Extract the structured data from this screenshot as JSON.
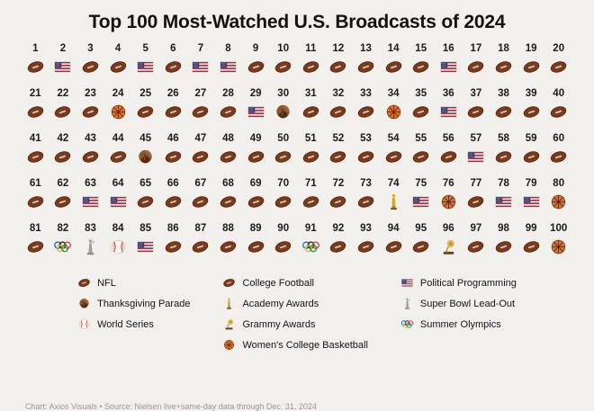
{
  "title": "Top 100 Most-Watched U.S. Broadcasts of 2024",
  "footer": "Chart: Axios Visuals • Source: Nielsen live+same-day data through Dec. 31, 2024",
  "colors": {
    "background": "#f2f0ec",
    "title_text": "#121212",
    "rank_number": "#1b1b1b",
    "footer_text": "#9a9791"
  },
  "chart_data": {
    "type": "pictogram",
    "title": "Top 100 Most-Watched U.S. Broadcasts of 2024",
    "rows": 5,
    "cols": 20,
    "rank_range": [
      1,
      100
    ],
    "icons_by_rank": [
      "football",
      "flag",
      "football",
      "football",
      "flag",
      "football",
      "flag",
      "flag",
      "football",
      "football",
      "football",
      "football",
      "football",
      "football",
      "football",
      "flag",
      "football",
      "football",
      "football",
      "football",
      "football",
      "football",
      "football",
      "basketball",
      "football",
      "football",
      "football",
      "football",
      "flag",
      "turkey",
      "football",
      "football",
      "football",
      "basketball",
      "football",
      "flag",
      "football",
      "football",
      "football",
      "football",
      "football",
      "football",
      "football",
      "football",
      "turkey",
      "football",
      "football",
      "football",
      "football",
      "football",
      "football",
      "football",
      "football",
      "football",
      "football",
      "football",
      "flag",
      "football",
      "football",
      "football",
      "football",
      "football",
      "flag",
      "flag",
      "football",
      "football",
      "football",
      "football",
      "football",
      "football",
      "football",
      "football",
      "football",
      "oscar",
      "flag",
      "basketball",
      "football",
      "flag",
      "flag",
      "basketball",
      "football",
      "rings",
      "statue",
      "baseball",
      "flag",
      "football",
      "football",
      "football",
      "football",
      "football",
      "rings",
      "football",
      "football",
      "football",
      "football",
      "grammy",
      "football",
      "football",
      "football",
      "basketball"
    ],
    "category_labels": {
      "football": "NFL / College Football",
      "flag": "Political Programming",
      "turkey": "Thanksgiving Parade",
      "baseball": "World Series",
      "basketball": "Women's College Basketball",
      "oscar": "Academy Awards",
      "grammy": "Grammy Awards",
      "statue": "Super Bowl Lead-Out",
      "rings": "Summer Olympics"
    },
    "counts": {
      "football": 73,
      "flag": 14,
      "basketball": 5,
      "turkey": 2,
      "rings": 2,
      "oscar": 1,
      "grammy": 1,
      "baseball": 1,
      "statue": 1
    },
    "legend_position": "bottom"
  },
  "legend": {
    "columns": [
      [
        {
          "icon": "football",
          "label": "NFL"
        },
        {
          "icon": "turkey",
          "label": "Thanksgiving Parade"
        },
        {
          "icon": "baseball",
          "label": "World Series"
        }
      ],
      [
        {
          "icon": "football",
          "label": "College Football"
        },
        {
          "icon": "oscar",
          "label": "Academy Awards"
        },
        {
          "icon": "grammy",
          "label": "Grammy Awards"
        },
        {
          "icon": "basketball",
          "label": "Women's College Basketball"
        }
      ],
      [
        {
          "icon": "flag",
          "label": "Political Programming"
        },
        {
          "icon": "statue",
          "label": "Super Bowl Lead-Out"
        },
        {
          "icon": "rings",
          "label": "Summer Olympics"
        }
      ]
    ]
  }
}
